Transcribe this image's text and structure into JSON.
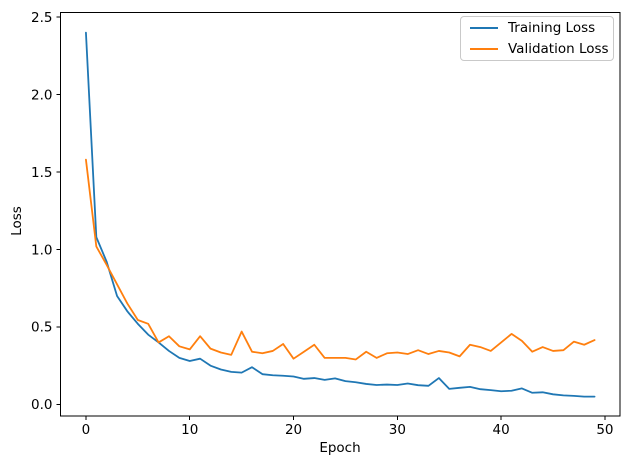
{
  "window": {
    "background": "#ffffff"
  },
  "axes": {
    "xlabel": "Epoch",
    "ylabel": "Loss"
  },
  "legend": {
    "position": "upper right",
    "items": [
      {
        "label": "Training Loss",
        "color": "#1f77b4"
      },
      {
        "label": "Validation Loss",
        "color": "#ff7f0e"
      }
    ]
  },
  "chart_data": {
    "type": "line",
    "title": "",
    "xlabel": "Epoch",
    "ylabel": "Loss",
    "grid": false,
    "legend_position": "upper right",
    "axis_color": "#000000",
    "xlim": [
      -2.45,
      51.45
    ],
    "ylim": [
      -0.075,
      2.53
    ],
    "xticks": [
      0,
      10,
      20,
      30,
      40,
      50
    ],
    "xtick_labels": [
      "0",
      "10",
      "20",
      "30",
      "40",
      "50"
    ],
    "yticks": [
      0.0,
      0.5,
      1.0,
      1.5,
      2.0,
      2.5
    ],
    "ytick_labels": [
      "0.0",
      "0.5",
      "1.0",
      "1.5",
      "2.0",
      "2.5"
    ],
    "x": [
      0,
      1,
      2,
      3,
      4,
      5,
      6,
      7,
      8,
      9,
      10,
      11,
      12,
      13,
      14,
      15,
      16,
      17,
      18,
      19,
      20,
      21,
      22,
      23,
      24,
      25,
      26,
      27,
      28,
      29,
      30,
      31,
      32,
      33,
      34,
      35,
      36,
      37,
      38,
      39,
      40,
      41,
      42,
      43,
      44,
      45,
      46,
      47,
      48,
      49
    ],
    "series": [
      {
        "name": "Training Loss",
        "color": "#1f77b4",
        "values": [
          2.4,
          1.08,
          0.92,
          0.7,
          0.6,
          0.52,
          0.45,
          0.4,
          0.345,
          0.3,
          0.28,
          0.295,
          0.25,
          0.225,
          0.21,
          0.205,
          0.24,
          0.195,
          0.188,
          0.185,
          0.18,
          0.165,
          0.17,
          0.158,
          0.168,
          0.15,
          0.143,
          0.132,
          0.125,
          0.128,
          0.125,
          0.135,
          0.124,
          0.12,
          0.17,
          0.1,
          0.107,
          0.113,
          0.098,
          0.092,
          0.085,
          0.088,
          0.103,
          0.075,
          0.078,
          0.065,
          0.058,
          0.055,
          0.05,
          0.05
        ]
      },
      {
        "name": "Validation Loss",
        "color": "#ff7f0e",
        "values": [
          1.58,
          1.02,
          0.9,
          0.775,
          0.65,
          0.545,
          0.52,
          0.4,
          0.44,
          0.375,
          0.355,
          0.44,
          0.36,
          0.335,
          0.32,
          0.47,
          0.34,
          0.33,
          0.345,
          0.39,
          0.295,
          0.34,
          0.385,
          0.3,
          0.3,
          0.3,
          0.29,
          0.34,
          0.3,
          0.33,
          0.335,
          0.325,
          0.35,
          0.325,
          0.345,
          0.335,
          0.31,
          0.385,
          0.37,
          0.345,
          0.4,
          0.455,
          0.41,
          0.34,
          0.37,
          0.345,
          0.35,
          0.405,
          0.385,
          0.415
        ]
      }
    ]
  }
}
